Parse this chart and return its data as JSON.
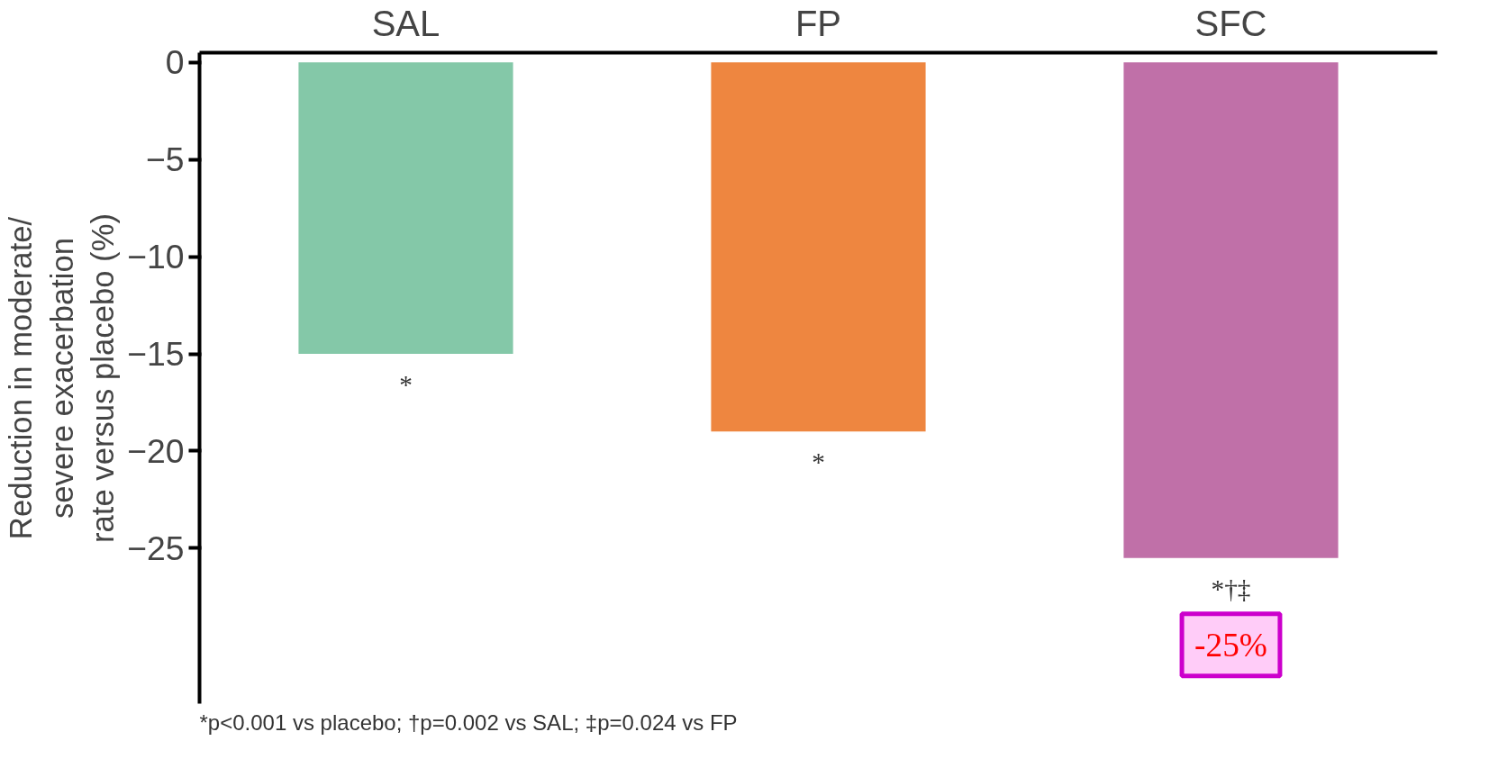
{
  "chart_data": {
    "type": "bar",
    "ylabel": "Reduction in moderate/\nsevere exacerbation\nrate versus placebo (%)",
    "categories": [
      "SAL",
      "FP",
      "SFC"
    ],
    "values": [
      -15,
      -19,
      -25.5
    ],
    "colors": [
      "#84c8a8",
      "#ee8640",
      "#c070a8"
    ],
    "ylim": [
      -33,
      0.5
    ],
    "yticks": [
      0,
      -5,
      -10,
      -15,
      -20,
      -25
    ],
    "grid": false,
    "annotations": [
      {
        "text": "*",
        "x": "SAL",
        "y": -15
      },
      {
        "text": "*",
        "x": "FP",
        "y": -19
      },
      {
        "text": "*†‡",
        "x": "SFC",
        "y": -25.5
      },
      {
        "text": "-25%",
        "x": "SFC",
        "y": -25.5
      },
      "*p<0.001 vs placebo; †p=0.002 vs SAL; ‡p=0.024 vs FP"
    ]
  }
}
